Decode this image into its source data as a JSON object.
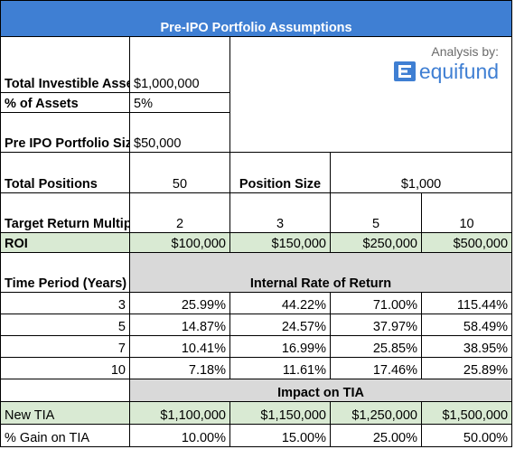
{
  "title": "Pre-IPO Portfolio Assumptions",
  "branding": {
    "analysis_label": "Analysis by:",
    "brand_name": "equifund",
    "icon": "equifund-logo-icon",
    "accent_color": "#3f7fd3"
  },
  "assumptions": {
    "tia_label": "Total Investible Assets (TIA)",
    "tia_value": "$1,000,000",
    "pct_assets_label": "% of Assets",
    "pct_assets_value": "5%",
    "portfolio_size_label": "Pre IPO Portfolio Size",
    "portfolio_size_value": "$50,000",
    "total_positions_label": "Total Positions",
    "total_positions_value": "50",
    "position_size_label": "Position Size",
    "position_size_value": "$1,000"
  },
  "target_return": {
    "label": "Target Return Multiple",
    "multiples": [
      "2",
      "3",
      "5",
      "10"
    ]
  },
  "roi": {
    "label": "ROI",
    "values": [
      "$100,000",
      "$150,000",
      "$250,000",
      "$500,000"
    ],
    "highlight_color": "#d9ead3"
  },
  "time_period": {
    "label": "Time Period (Years)",
    "section_label": "Internal Rate of Return",
    "section_color": "#d9d9d9"
  },
  "irr_rows": [
    {
      "years": "3",
      "values": [
        "25.99%",
        "44.22%",
        "71.00%",
        "115.44%"
      ]
    },
    {
      "years": "5",
      "values": [
        "14.87%",
        "24.57%",
        "37.97%",
        "58.49%"
      ]
    },
    {
      "years": "7",
      "values": [
        "10.41%",
        "16.99%",
        "25.85%",
        "38.95%"
      ]
    },
    {
      "years": "10",
      "values": [
        "7.18%",
        "11.61%",
        "17.46%",
        "25.89%"
      ]
    }
  ],
  "impact": {
    "section_label": "Impact on TIA",
    "new_tia_label": "New TIA",
    "new_tia_values": [
      "$1,100,000",
      "$1,150,000",
      "$1,250,000",
      "$1,500,000"
    ],
    "gain_label": "% Gain on TIA",
    "gain_values": [
      "10.00%",
      "15.00%",
      "25.00%",
      "50.00%"
    ]
  }
}
